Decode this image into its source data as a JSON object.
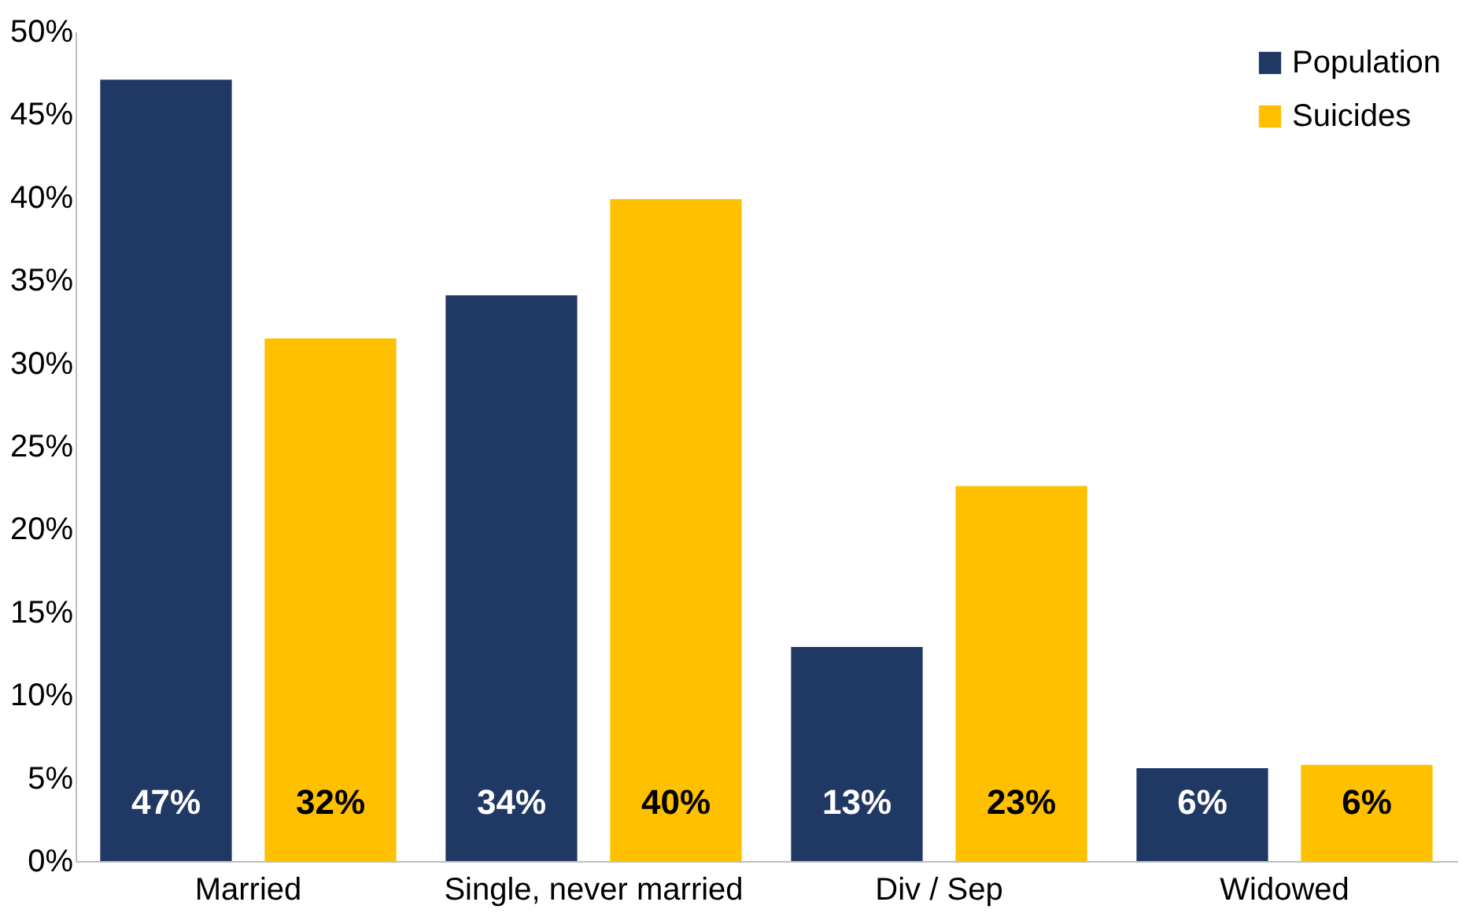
{
  "chart_data": {
    "type": "bar",
    "categories": [
      "Married",
      "Single, never married",
      "Div / Sep",
      "Widowed"
    ],
    "series": [
      {
        "name": "Population",
        "color": "#203864",
        "values": [
          47.1,
          34.1,
          12.9,
          5.6
        ],
        "value_labels": [
          "47%",
          "34%",
          "13%",
          "6%"
        ]
      },
      {
        "name": "Suicides",
        "color": "#ffc000",
        "values": [
          31.5,
          39.9,
          22.6,
          5.8
        ],
        "value_labels": [
          "32%",
          "40%",
          "23%",
          "6%"
        ]
      }
    ],
    "ylim": [
      0,
      50
    ],
    "yticks": [
      {
        "value": 0,
        "label": "0%"
      },
      {
        "value": 5,
        "label": "5%"
      },
      {
        "value": 10,
        "label": "10%"
      },
      {
        "value": 15,
        "label": "15%"
      },
      {
        "value": 20,
        "label": "20%"
      },
      {
        "value": 25,
        "label": "25%"
      },
      {
        "value": 30,
        "label": "30%"
      },
      {
        "value": 35,
        "label": "35%"
      },
      {
        "value": 40,
        "label": "40%"
      },
      {
        "value": 45,
        "label": "45%"
      },
      {
        "value": 50,
        "label": "50%"
      }
    ],
    "grid": false,
    "legend": "top right"
  }
}
